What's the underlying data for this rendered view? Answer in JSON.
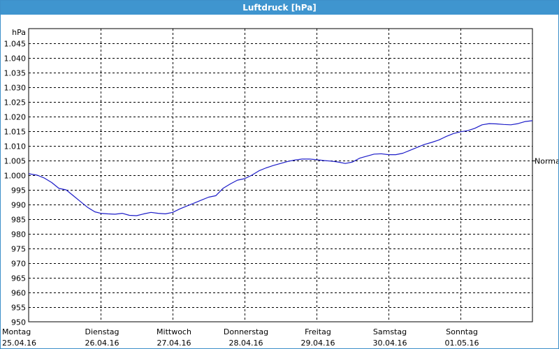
{
  "window": {
    "title": "Luftdruck [hPa]"
  },
  "colors": {
    "titlebar": "#3f95cf",
    "line": "#1c1cc8",
    "grid": "#000000"
  },
  "chart_data": {
    "type": "line",
    "title": "Luftdruck [hPa]",
    "ylabel": "hPa",
    "ylim": [
      950,
      1050
    ],
    "yticks": [
      950,
      955,
      960,
      965,
      970,
      975,
      980,
      985,
      990,
      995,
      1000,
      1005,
      1010,
      1015,
      1020,
      1025,
      1030,
      1035,
      1040,
      1045
    ],
    "ytick_labels": [
      "950",
      "955",
      "960",
      "965",
      "970",
      "975",
      "980",
      "985",
      "990",
      "995",
      "1.000",
      "1.005",
      "1.010",
      "1.015",
      "1.020",
      "1.025",
      "1.030",
      "1.035",
      "1.040",
      "1.045"
    ],
    "x_range": [
      0,
      7
    ],
    "x_ticks": [
      {
        "x": 0,
        "day": "Montag",
        "date": "25.04.16"
      },
      {
        "x": 1,
        "day": "Dienstag",
        "date": "26.04.16"
      },
      {
        "x": 2,
        "day": "Mittwoch",
        "date": "27.04.16"
      },
      {
        "x": 3,
        "day": "Donnerstag",
        "date": "28.04.16"
      },
      {
        "x": 4,
        "day": "Freitag",
        "date": "29.04.16"
      },
      {
        "x": 5,
        "day": "Samstag",
        "date": "30.04.16"
      },
      {
        "x": 6,
        "day": "Sonntag",
        "date": "01.05.16"
      }
    ],
    "reference_line": {
      "label": "Normal",
      "value": 1005
    },
    "grid": true,
    "series": [
      {
        "x": [
          0,
          0.12,
          0.22,
          0.32,
          0.42,
          0.52,
          0.62,
          0.72,
          0.82,
          0.92,
          1.0,
          1.1,
          1.2,
          1.3,
          1.4,
          1.5,
          1.6,
          1.7,
          1.8,
          1.9,
          2.0,
          2.1,
          2.2,
          2.3,
          2.4,
          2.5,
          2.6,
          2.7,
          2.8,
          2.9,
          3.0,
          3.1,
          3.2,
          3.3,
          3.4,
          3.5,
          3.6,
          3.7,
          3.8,
          3.9,
          4.0,
          4.1,
          4.2,
          4.3,
          4.4,
          4.5,
          4.6,
          4.7,
          4.8,
          4.9,
          5.0,
          5.1,
          5.2,
          5.3,
          5.4,
          5.5,
          5.6,
          5.7,
          5.8,
          5.9,
          6.0,
          6.1,
          6.2,
          6.3,
          6.4,
          6.5,
          6.6,
          6.7,
          6.8,
          6.9,
          7.0
        ],
        "values": [
          1000.5,
          1000.0,
          999.0,
          997.5,
          995.5,
          995.0,
          993.0,
          991.0,
          989.0,
          987.5,
          987.0,
          986.8,
          986.7,
          987.0,
          986.3,
          986.2,
          986.8,
          987.3,
          987.0,
          986.8,
          987.3,
          988.5,
          989.5,
          990.5,
          991.5,
          992.5,
          993.0,
          995.5,
          997.0,
          998.3,
          998.8,
          1000.0,
          1001.5,
          1002.5,
          1003.3,
          1004.0,
          1004.7,
          1005.2,
          1005.5,
          1005.5,
          1005.3,
          1005.0,
          1004.8,
          1004.5,
          1004.0,
          1004.5,
          1005.8,
          1006.5,
          1007.2,
          1007.3,
          1007.0,
          1007.0,
          1007.5,
          1008.5,
          1009.5,
          1010.5,
          1011.2,
          1012.0,
          1013.2,
          1014.2,
          1014.8,
          1015.2,
          1016.0,
          1017.2,
          1017.6,
          1017.5,
          1017.3,
          1017.2,
          1017.6,
          1018.3,
          1018.6
        ]
      }
    ]
  }
}
